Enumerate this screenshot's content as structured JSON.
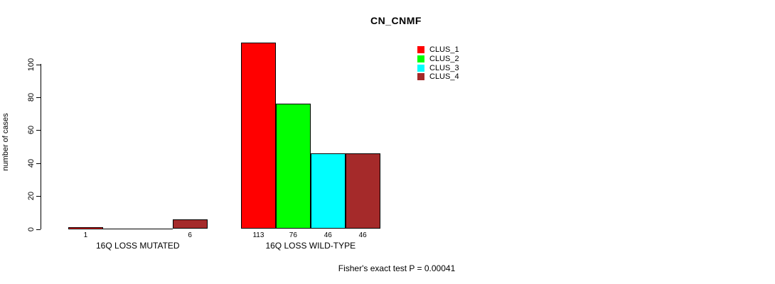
{
  "chart_data": {
    "type": "bar",
    "title": "CN_CNMF",
    "ylabel": "number of cases",
    "yticks": [
      0,
      20,
      40,
      60,
      80,
      100
    ],
    "ylim": [
      0,
      113
    ],
    "grid": false,
    "categories": [
      "16Q LOSS MUTATED",
      "16Q LOSS WILD-TYPE"
    ],
    "series": [
      {
        "name": "CLUS_1",
        "color": "#FF0000",
        "values": [
          1,
          113
        ]
      },
      {
        "name": "CLUS_2",
        "color": "#00FF00",
        "values": [
          0,
          76
        ]
      },
      {
        "name": "CLUS_3",
        "color": "#00FFFF",
        "values": [
          0,
          46
        ]
      },
      {
        "name": "CLUS_4",
        "color": "#A52A2A",
        "values": [
          6,
          46
        ]
      }
    ],
    "bar_value_labels": [
      [
        "1",
        "",
        "",
        "6"
      ],
      [
        "113",
        "76",
        "46",
        "46"
      ]
    ],
    "legend": {
      "position": "top-right",
      "entries": [
        "CLUS_1",
        "CLUS_2",
        "CLUS_3",
        "CLUS_4"
      ]
    },
    "annotation": "Fisher's exact test P = 0.00041"
  }
}
